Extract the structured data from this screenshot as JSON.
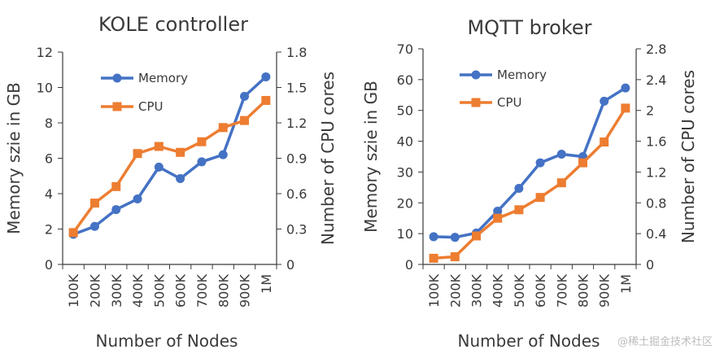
{
  "colors": {
    "memory": "#4472c4",
    "cpu": "#ed7d31",
    "axis": "#3a3a3a",
    "background": "#ffffff"
  },
  "watermark": "@稀土掘金技术社区",
  "chart_data": [
    {
      "type": "line",
      "title": "KOLE controller",
      "xlabel": "Number of Nodes",
      "ylabel": "Memory szie in GB",
      "y2label": "Number of CPU cores",
      "categories": [
        "100K",
        "200K",
        "300K",
        "400K",
        "500K",
        "600K",
        "700K",
        "800K",
        "900K",
        "1M"
      ],
      "ylim": [
        0,
        12
      ],
      "y2lim": [
        0,
        1.8
      ],
      "yticks": [
        0,
        2,
        4,
        6,
        8,
        10,
        12
      ],
      "y2ticks": [
        "0",
        "0.3",
        "0.6",
        "0.9",
        "1.2",
        "1.5",
        "1.8"
      ],
      "grid": false,
      "legend_position": "top-left",
      "series": [
        {
          "name": "Memory",
          "axis": "left",
          "marker": "circle",
          "values": [
            1.7,
            2.15,
            3.1,
            3.7,
            5.5,
            4.85,
            5.8,
            6.2,
            9.5,
            10.6
          ]
        },
        {
          "name": "CPU",
          "axis": "right",
          "marker": "square",
          "values": [
            0.27,
            0.52,
            0.66,
            0.94,
            1.0,
            0.95,
            1.04,
            1.16,
            1.22,
            1.39
          ]
        }
      ]
    },
    {
      "type": "line",
      "title": "MQTT broker",
      "xlabel": "Number of Nodes",
      "ylabel": "Memory szie in GB",
      "y2label": "Number of CPU cores",
      "categories": [
        "100K",
        "200K",
        "300K",
        "400K",
        "500K",
        "600K",
        "700K",
        "800K",
        "900K",
        "1M"
      ],
      "ylim": [
        0,
        70
      ],
      "y2lim": [
        0,
        2.8
      ],
      "yticks": [
        0,
        10,
        20,
        30,
        40,
        50,
        60,
        70
      ],
      "y2ticks": [
        "0",
        "0.4",
        "0.8",
        "1.2",
        "1.6",
        "2",
        "2.4",
        "2.8"
      ],
      "grid": false,
      "legend_position": "top-left",
      "series": [
        {
          "name": "Memory",
          "axis": "left",
          "marker": "circle",
          "values": [
            9,
            8.8,
            10.2,
            17.3,
            24.7,
            33,
            35.8,
            35,
            53,
            57.3
          ]
        },
        {
          "name": "CPU",
          "axis": "right",
          "marker": "square",
          "values": [
            0.08,
            0.1,
            0.37,
            0.6,
            0.71,
            0.87,
            1.06,
            1.32,
            1.59,
            2.03
          ]
        }
      ]
    }
  ]
}
